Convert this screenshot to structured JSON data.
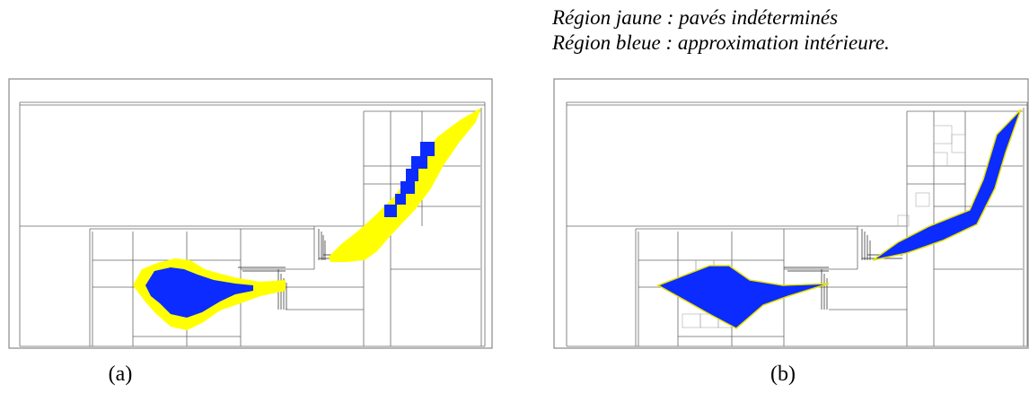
{
  "legend": {
    "yellow_label": "Région jaune : pavés indéterminés",
    "blue_label": "Région bleue : approximation intérieure."
  },
  "panels": [
    {
      "id": "a",
      "caption": "(a)"
    },
    {
      "id": "b",
      "caption": "(b)"
    }
  ],
  "colors": {
    "yellow": "#ffff00",
    "blue": "#0b2bff",
    "frame": "#888888",
    "grid": "#555555"
  }
}
